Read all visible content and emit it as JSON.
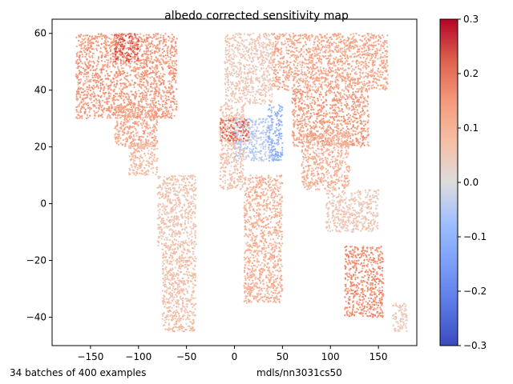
{
  "chart_data": {
    "type": "scatter",
    "title": "albedo corrected sensitivity map",
    "xlabel": "",
    "ylabel": "",
    "xlim": [
      -190,
      190
    ],
    "ylim": [
      -50,
      65
    ],
    "x_ticks": [
      -150,
      -100,
      -50,
      0,
      50,
      100,
      150
    ],
    "x_tick_labels": [
      "−150",
      "−100",
      "−50",
      "0",
      "50",
      "100",
      "150"
    ],
    "y_ticks": [
      -40,
      -20,
      0,
      20,
      40,
      60
    ],
    "y_tick_labels": [
      "−40",
      "−20",
      "0",
      "20",
      "40",
      "60"
    ],
    "grid": false,
    "colormap": "coolwarm",
    "colorbar": {
      "range": [
        -0.3,
        0.3
      ],
      "ticks": [
        -0.3,
        -0.2,
        -0.1,
        0.0,
        0.1,
        0.2,
        0.3
      ],
      "tick_labels": [
        "−0.3",
        "−0.2",
        "−0.1",
        "0.0",
        "0.1",
        "0.2",
        "0.3"
      ]
    },
    "regions": [
      {
        "lon": [
          -165,
          -60
        ],
        "lat": [
          30,
          60
        ],
        "value": 0.14
      },
      {
        "lon": [
          -125,
          -100
        ],
        "lat": [
          50,
          60
        ],
        "value": 0.22
      },
      {
        "lon": [
          -125,
          -80
        ],
        "lat": [
          20,
          35
        ],
        "value": 0.12
      },
      {
        "lon": [
          -110,
          -80
        ],
        "lat": [
          10,
          22
        ],
        "value": 0.08
      },
      {
        "lon": [
          -80,
          -40
        ],
        "lat": [
          -15,
          10
        ],
        "value": 0.06
      },
      {
        "lon": [
          -75,
          -40
        ],
        "lat": [
          -45,
          -15
        ],
        "value": 0.07
      },
      {
        "lon": [
          -15,
          10
        ],
        "lat": [
          5,
          35
        ],
        "value": 0.07
      },
      {
        "lon": [
          0,
          40
        ],
        "lat": [
          15,
          30
        ],
        "value": -0.04
      },
      {
        "lon": [
          -15,
          15
        ],
        "lat": [
          22,
          30
        ],
        "value": 0.2
      },
      {
        "lon": [
          35,
          50
        ],
        "lat": [
          15,
          35
        ],
        "value": -0.1
      },
      {
        "lon": [
          10,
          50
        ],
        "lat": [
          -35,
          10
        ],
        "value": 0.1
      },
      {
        "lon": [
          -10,
          40
        ],
        "lat": [
          35,
          60
        ],
        "value": 0.05
      },
      {
        "lon": [
          40,
          160
        ],
        "lat": [
          40,
          60
        ],
        "value": 0.12
      },
      {
        "lon": [
          60,
          140
        ],
        "lat": [
          20,
          40
        ],
        "value": 0.14
      },
      {
        "lon": [
          70,
          120
        ],
        "lat": [
          5,
          25
        ],
        "value": 0.1
      },
      {
        "lon": [
          95,
          150
        ],
        "lat": [
          -10,
          5
        ],
        "value": 0.05
      },
      {
        "lon": [
          115,
          155
        ],
        "lat": [
          -40,
          -15
        ],
        "value": 0.16
      },
      {
        "lon": [
          165,
          180
        ],
        "lat": [
          -45,
          -35
        ],
        "value": 0.05
      }
    ]
  },
  "annotations": {
    "left": "34 batches of 400 examples",
    "right": "mdls/nn3031cs50"
  }
}
